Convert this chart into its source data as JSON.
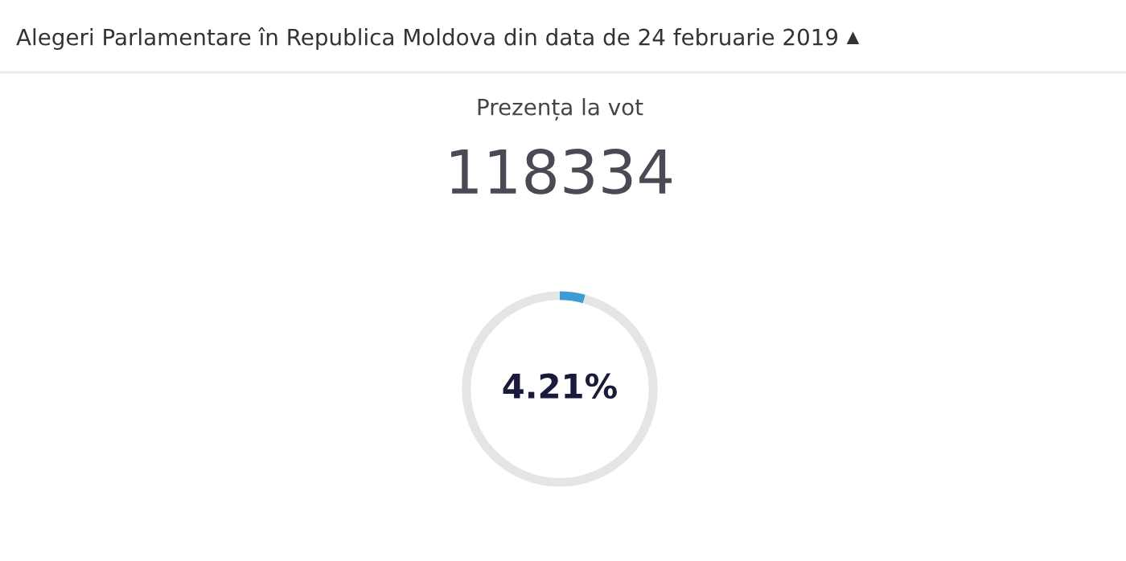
{
  "chart_data": {
    "type": "donut",
    "title": "Alegeri Parlamentare în Republica Moldova din data de 24 februarie 2019",
    "subtitle": "Prezența la vot",
    "annotations": [
      "118334"
    ],
    "categories": [
      null,
      null
    ],
    "values": [
      4.21,
      95.79
    ],
    "colors": [
      "#3d9bd6",
      "#e5e5e5"
    ],
    "value_labels": [
      "4.21%",
      null
    ]
  }
}
